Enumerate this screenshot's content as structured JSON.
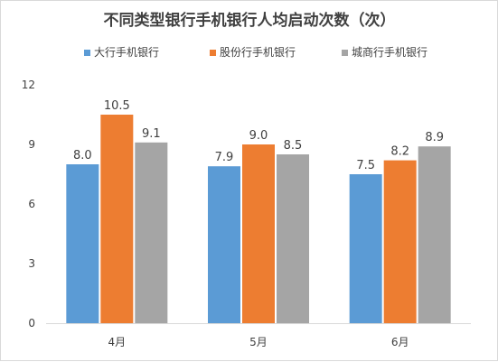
{
  "chart_data": {
    "type": "bar",
    "title": "不同类型银行手机银行人均启动次数（次）",
    "categories": [
      "4月",
      "5月",
      "6月"
    ],
    "series": [
      {
        "name": "大行手机银行",
        "color": "#5b9bd5",
        "values": [
          8.0,
          7.9,
          7.5
        ]
      },
      {
        "name": "股份行手机银行",
        "color": "#ed7d31",
        "values": [
          10.5,
          9.0,
          8.2
        ]
      },
      {
        "name": "城商行手机银行",
        "color": "#a5a5a5",
        "values": [
          9.1,
          8.5,
          8.9
        ]
      }
    ],
    "yticks": [
      0,
      3,
      6,
      9,
      12
    ],
    "ylim": [
      0,
      12
    ],
    "grid": false,
    "legend": "top"
  }
}
